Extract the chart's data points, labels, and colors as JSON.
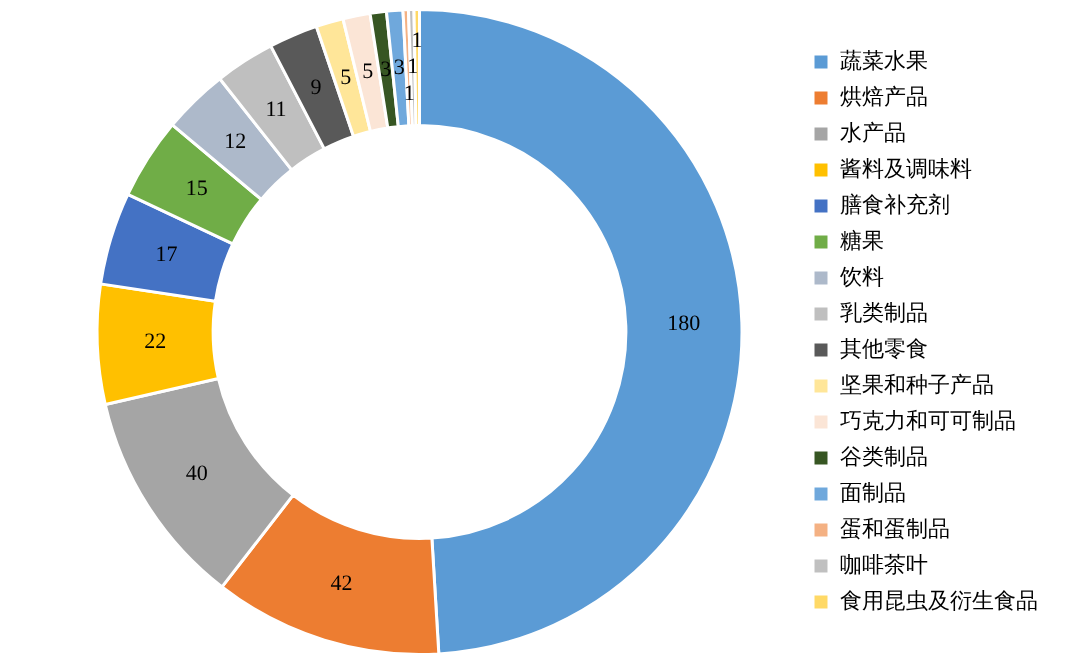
{
  "chart_data": {
    "type": "donut",
    "categories": [
      "蔬菜水果",
      "烘焙产品",
      "水产品",
      "酱料及调味料",
      "膳食补充剂",
      "糖果",
      "饮料",
      "乳类制品",
      "其他零食",
      "坚果和种子产品",
      "巧克力和可可制品",
      "谷类制品",
      "面制品",
      "蛋和蛋制品",
      "咖啡茶叶",
      "食用昆虫及衍生食品"
    ],
    "values": [
      180,
      42,
      40,
      22,
      17,
      15,
      12,
      11,
      9,
      5,
      5,
      3,
      3,
      1,
      1,
      1
    ],
    "colors": [
      "#5b9bd5",
      "#ed7d31",
      "#a5a5a5",
      "#ffc000",
      "#4472c4",
      "#70ad47",
      "#adb9ca",
      "#bfbfbf",
      "#595959",
      "#ffe699",
      "#fbe5d6",
      "#375623",
      "#6fa8dc",
      "#f4b183",
      "#c0c0c0",
      "#ffd966"
    ],
    "data_labels": true,
    "legend": "right"
  }
}
